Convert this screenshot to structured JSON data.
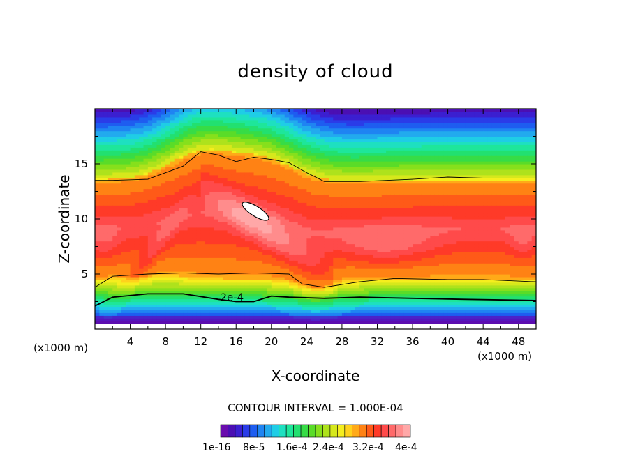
{
  "chart_data": {
    "type": "heatmap",
    "title": "density of cloud",
    "xlabel": "X-coordinate",
    "ylabel": "Z-coordinate",
    "x_unit": "(x1000 m)",
    "y_unit": "",
    "xlim": [
      0,
      50
    ],
    "ylim": [
      0,
      20
    ],
    "x_ticks": [
      4,
      8,
      12,
      16,
      20,
      24,
      28,
      32,
      36,
      40,
      44,
      48
    ],
    "y_ticks": [
      5,
      10,
      15
    ],
    "contour_interval_text": "CONTOUR INTERVAL = 1.000E-04",
    "contour_label": "2e-4",
    "contour_line_z": [
      {
        "x": [
          0,
          2,
          6,
          10,
          12,
          14,
          16,
          18,
          20,
          22,
          24,
          26,
          30,
          36,
          40,
          44,
          50
        ],
        "z": [
          13.5,
          13.5,
          13.6,
          14.8,
          16.1,
          15.8,
          15.2,
          15.6,
          15.4,
          15.1,
          14.2,
          13.4,
          13.4,
          13.6,
          13.8,
          13.7,
          13.7
        ]
      },
      {
        "x": [
          0,
          2,
          6,
          10,
          14,
          18,
          22,
          23.5,
          26,
          30,
          34,
          40,
          44,
          50
        ],
        "z": [
          3.8,
          4.8,
          5.0,
          5.1,
          5.0,
          5.1,
          5.0,
          4.1,
          3.8,
          4.3,
          4.6,
          4.5,
          4.5,
          4.3
        ]
      },
      {
        "x": [
          0,
          2,
          6,
          10,
          14,
          16,
          18,
          20,
          22,
          26,
          30,
          36,
          42,
          50
        ],
        "z": [
          2.1,
          2.9,
          3.2,
          3.2,
          2.7,
          2.5,
          2.5,
          3.0,
          2.9,
          2.8,
          2.9,
          2.8,
          2.7,
          2.6
        ]
      }
    ],
    "colorbar": {
      "colors": [
        "#6a0dad",
        "#4b0fb3",
        "#3b1fd0",
        "#2a3ce8",
        "#1e5df0",
        "#1f84f2",
        "#22aaee",
        "#1fcde6",
        "#1ee0c0",
        "#1ee69a",
        "#22e070",
        "#37dc46",
        "#5adc28",
        "#86e01c",
        "#aee21c",
        "#d6e81c",
        "#f5ee1e",
        "#ffd21c",
        "#ffaa18",
        "#ff8214",
        "#ff5a18",
        "#ff3a28",
        "#ff4a4a",
        "#ff6a6a",
        "#ff8c8c",
        "#ffa8a8"
      ],
      "labels": [
        "1e-16",
        "8e-5",
        "1.6e-4",
        "2.4e-4",
        "3.2e-4",
        "4e-4"
      ]
    }
  }
}
